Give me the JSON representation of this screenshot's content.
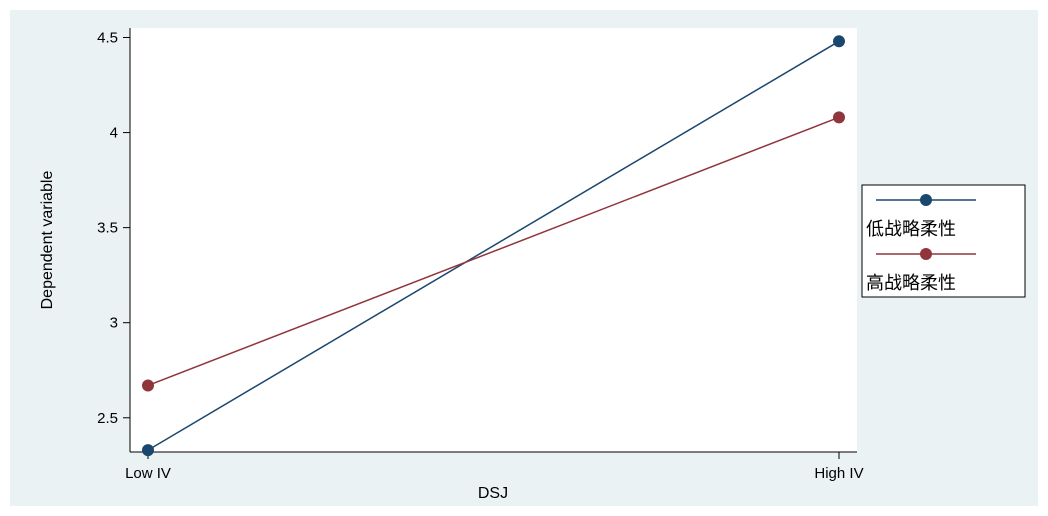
{
  "chart_data": {
    "type": "line",
    "title": "",
    "xlabel": "DSJ",
    "ylabel": "Dependent variable",
    "categories": [
      "Low IV",
      "High IV"
    ],
    "ylim": [
      2.32,
      4.55
    ],
    "yticks": [
      2.5,
      3,
      3.5,
      4,
      4.5
    ],
    "ytick_labels": [
      "2.5",
      "3",
      "3.5",
      "4",
      "4.5"
    ],
    "grid": false,
    "legend": "right",
    "background_color": "#eaf2f3",
    "series": [
      {
        "name": "低战略柔性",
        "values": [
          2.33,
          4.48
        ],
        "color": "#1a476f"
      },
      {
        "name": "高战略柔性",
        "values": [
          2.67,
          4.08
        ],
        "color": "#90353b"
      }
    ]
  }
}
